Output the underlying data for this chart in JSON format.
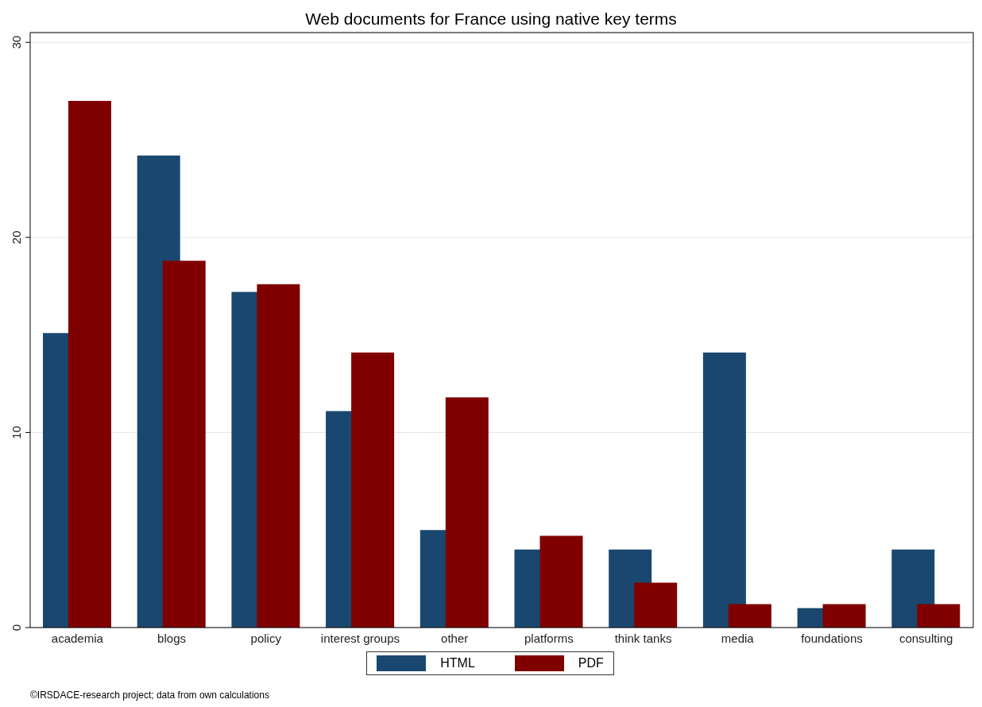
{
  "chart_data": {
    "type": "bar",
    "title": "Web documents for France using native key terms",
    "categories": [
      "academia",
      "blogs",
      "policy",
      "interest groups",
      "other",
      "platforms",
      "think tanks",
      "media",
      "foundations",
      "consulting"
    ],
    "series": [
      {
        "name": "HTML",
        "color": "#1a476f",
        "values": [
          15.1,
          24.2,
          17.2,
          11.1,
          5.0,
          4.0,
          4.0,
          14.1,
          1.0,
          4.0
        ]
      },
      {
        "name": "PDF",
        "color": "#800000",
        "values": [
          27.0,
          18.8,
          17.6,
          14.1,
          11.8,
          4.7,
          2.3,
          1.2,
          1.2,
          1.2
        ]
      }
    ],
    "ylim": [
      0,
      30.5
    ],
    "yticks": [
      0,
      10,
      20,
      30
    ],
    "grid": "y",
    "legend": "bottom",
    "annotations": [
      "©IRSDACE-research project; data from own calculations"
    ]
  }
}
